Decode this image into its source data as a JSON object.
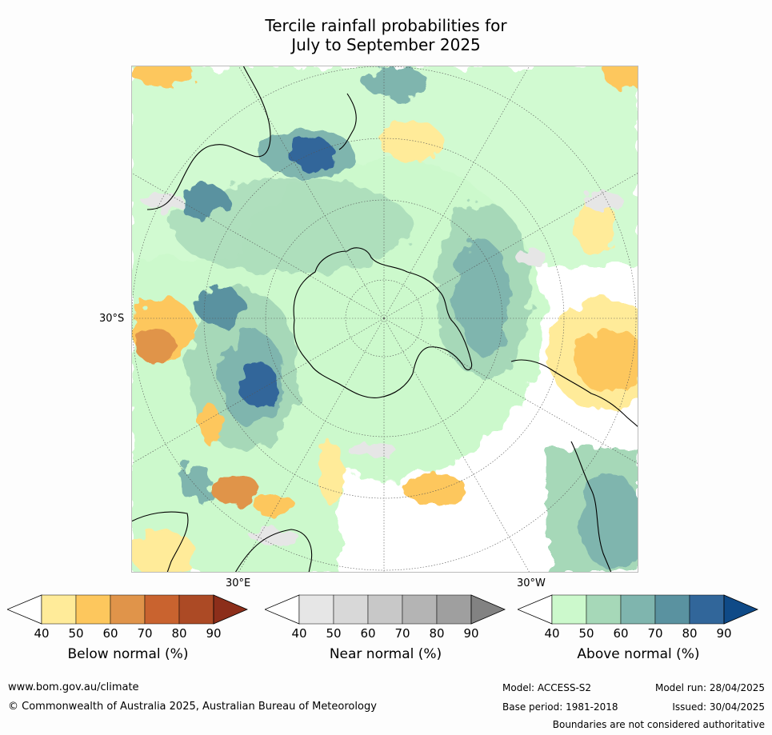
{
  "title": {
    "line1": "Tercile rainfall probabilities for",
    "line2": "July to September 2025"
  },
  "map": {
    "lat_label": "30°S",
    "lon_label_east": "30°E",
    "lon_label_west": "30°W",
    "projection": "south-polar-stereographic",
    "colors": {
      "below": [
        "#ffffff",
        "#ffeb99",
        "#fdc75d",
        "#e0944a",
        "#c9632f",
        "#ac4a25",
        "#8c2e1a"
      ],
      "near": [
        "#ffffff",
        "#e6e6e6",
        "#d8d8d8",
        "#c8c8c8",
        "#b4b4b4",
        "#9f9f9f",
        "#828282"
      ],
      "above": [
        "#ffffff",
        "#ccf9cc",
        "#a6d8b8",
        "#7fb5ae",
        "#5a92a0",
        "#31669a",
        "#0f4a87"
      ]
    }
  },
  "colorbars": [
    {
      "name": "below",
      "title": "Below normal (%)",
      "ticks": [
        "40",
        "50",
        "60",
        "70",
        "80",
        "90"
      ]
    },
    {
      "name": "near",
      "title": "Near normal (%)",
      "ticks": [
        "40",
        "50",
        "60",
        "70",
        "80",
        "90"
      ]
    },
    {
      "name": "above",
      "title": "Above normal (%)",
      "ticks": [
        "40",
        "50",
        "60",
        "70",
        "80",
        "90"
      ]
    }
  ],
  "footer": {
    "website": "www.bom.gov.au/climate",
    "copyright": "© Commonwealth of Australia 2025, Australian Bureau of Meteorology",
    "model": "Model: ACCESS-S2",
    "base_period": "Base period: 1981-2018",
    "model_run": "Model run: 28/04/2025",
    "issued": "Issued: 30/04/2025",
    "disclaimer": "Boundaries are not considered authoritative"
  }
}
